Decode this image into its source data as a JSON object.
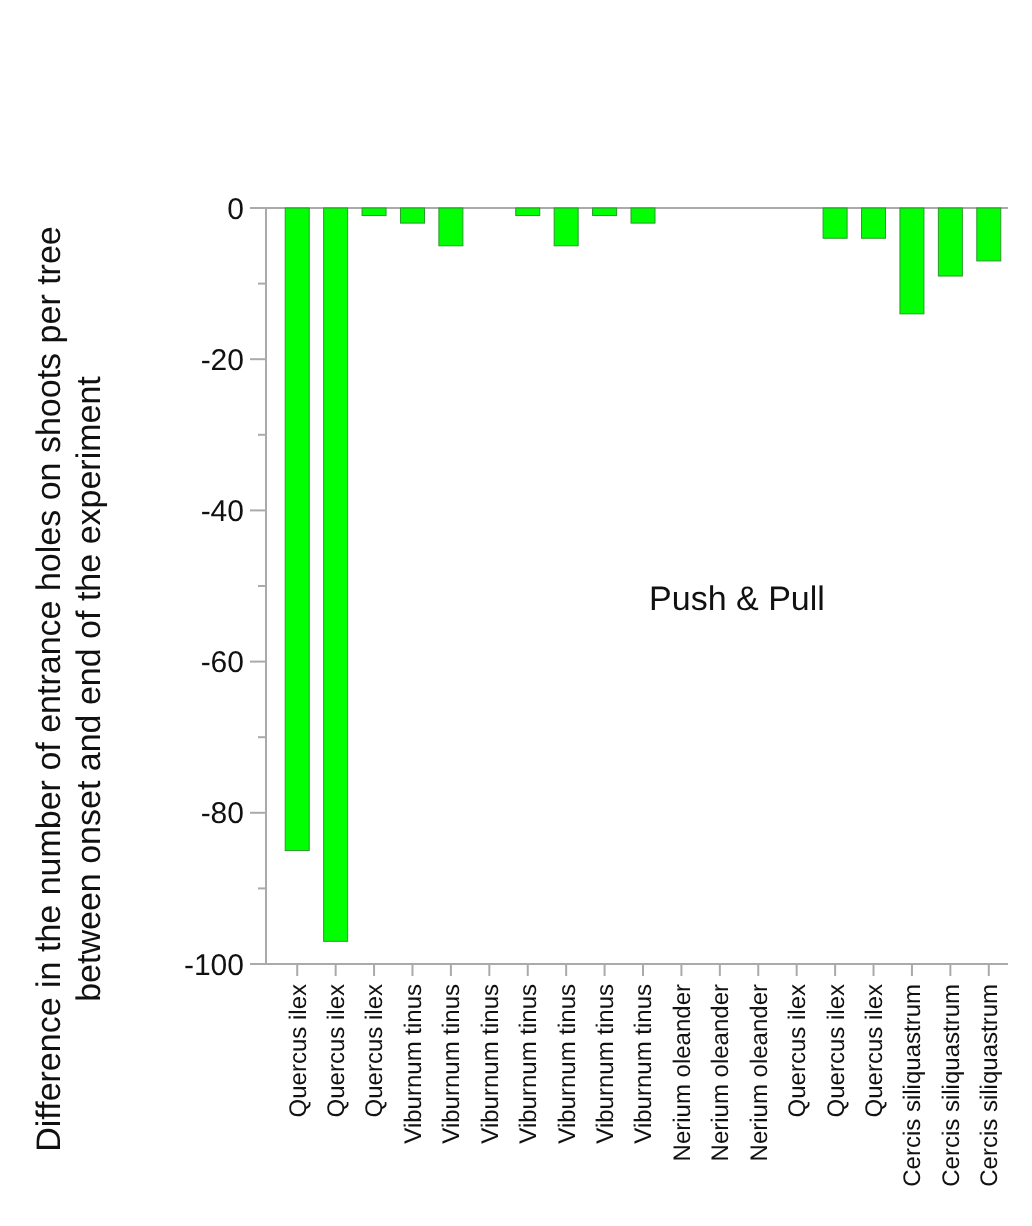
{
  "chart_data": {
    "type": "bar",
    "ylabel": "Difference in the number of entrance holes on shoots per tree between onset and end of the experiment",
    "categories": [
      "Quercus ilex",
      "Quercus ilex",
      "Quercus ilex",
      "Viburnum tinus",
      "Viburnum tinus",
      "Viburnum tinus",
      "Viburnum tinus",
      "Viburnum tinus",
      "Viburnum tinus",
      "Viburnum tinus",
      "Nerium oleander",
      "Nerium oleander",
      "Nerium oleander",
      "Quercus ilex",
      "Quercus ilex",
      "Quercus ilex",
      "Cercis siliquastrum",
      "Cercis siliquastrum",
      "Cercis siliquastrum"
    ],
    "values": [
      -85,
      -97,
      -1,
      -2,
      -5,
      0,
      -1,
      -5,
      -1,
      -2,
      0,
      0,
      0,
      0,
      -4,
      -4,
      -14,
      -9,
      -7
    ],
    "color": "#00ff00",
    "ylim": [
      -100,
      0
    ],
    "yticks": [
      0,
      {
        "value": -10,
        "label": null
      },
      -20,
      {
        "value": -30,
        "label": null
      },
      -40,
      {
        "value": -50,
        "label": null
      },
      -60,
      {
        "value": -70,
        "label": null
      },
      -80,
      {
        "value": -90,
        "label": null
      },
      -100
    ],
    "annotations": [
      "Push & Pull"
    ],
    "grid": false
  }
}
